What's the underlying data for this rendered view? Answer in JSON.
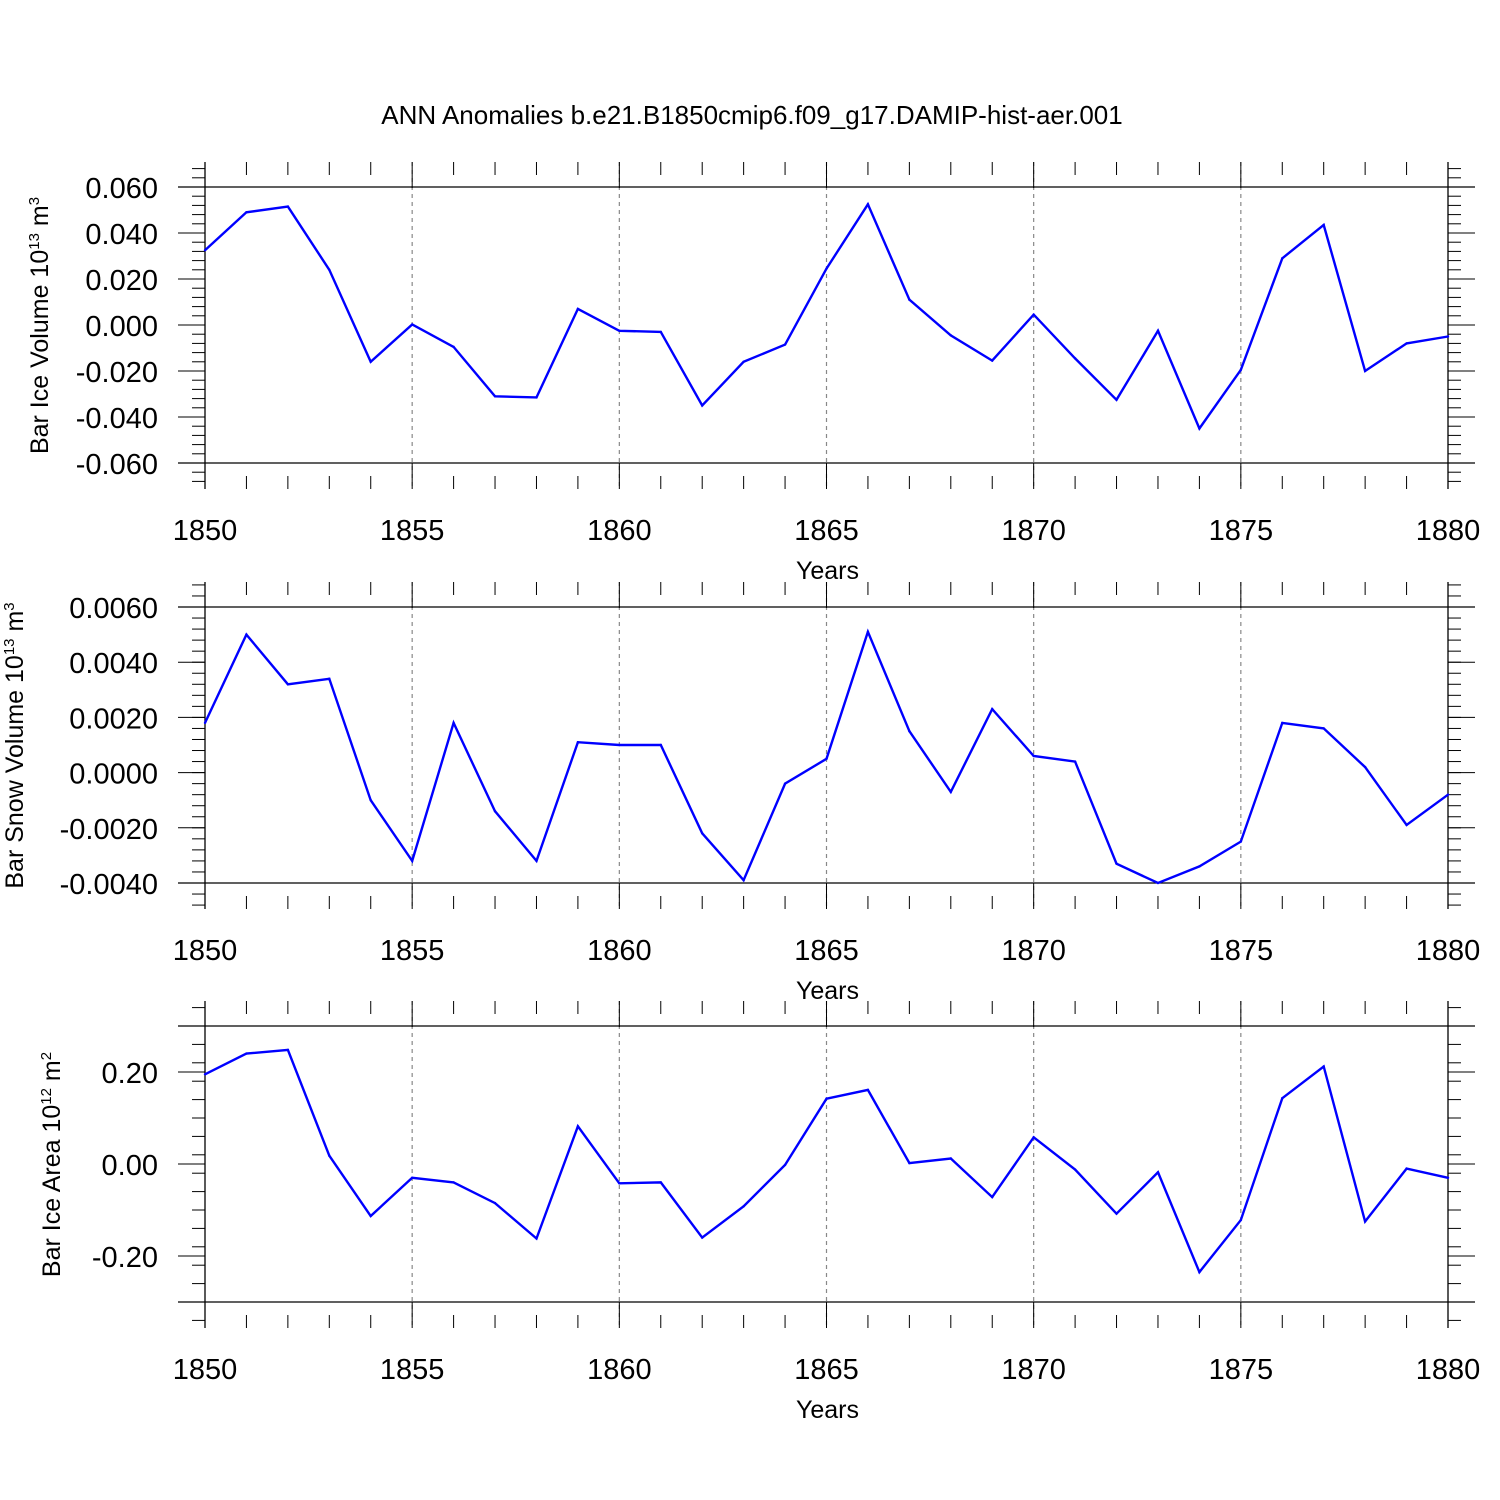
{
  "figure_title": "ANN Anomalies b.e21.B1850cmip6.f09_g17.DAMIP-hist-aer.001",
  "colors": {
    "line": "#0000ff",
    "axis": "#000000",
    "grid": "#888888"
  },
  "chart_data": [
    {
      "type": "line",
      "title": "",
      "xlabel": "Years",
      "ylabel": {
        "text": "Bar Ice Volume 10",
        "exp": "13",
        "unit": " m",
        "unit_exp": "3"
      },
      "xlim": [
        1850,
        1880
      ],
      "ylim": [
        -0.06,
        0.06
      ],
      "x_ticks": [
        1850,
        1855,
        1860,
        1865,
        1870,
        1875,
        1880
      ],
      "y_ticks": [
        -0.06,
        -0.04,
        -0.02,
        0.0,
        0.02,
        0.04,
        0.06
      ],
      "y_tick_labels": [
        "-0.060",
        "-0.040",
        "-0.020",
        "0.000",
        "0.020",
        "0.040",
        "0.060"
      ],
      "x": [
        1850,
        1851,
        1852,
        1853,
        1854,
        1855,
        1856,
        1857,
        1858,
        1859,
        1860,
        1861,
        1862,
        1863,
        1864,
        1865,
        1866,
        1867,
        1868,
        1869,
        1870,
        1871,
        1872,
        1873,
        1874,
        1875,
        1876,
        1877,
        1878,
        1879,
        1880
      ],
      "values": [
        0.0325,
        0.049,
        0.0515,
        0.024,
        -0.016,
        0.0002,
        -0.0095,
        -0.031,
        -0.0315,
        0.007,
        -0.0025,
        -0.003,
        -0.035,
        -0.016,
        -0.0085,
        0.0245,
        0.0525,
        0.011,
        -0.0045,
        -0.0155,
        0.0045,
        -0.0145,
        -0.0325,
        -0.0025,
        -0.045,
        -0.0195,
        0.029,
        0.0435,
        -0.02,
        -0.008,
        -0.005
      ]
    },
    {
      "type": "line",
      "title": "",
      "xlabel": "Years",
      "ylabel": {
        "text": "Bar Snow Volume 10",
        "exp": "13",
        "unit": " m",
        "unit_exp": "3"
      },
      "xlim": [
        1850,
        1880
      ],
      "ylim": [
        -0.004,
        0.006
      ],
      "x_ticks": [
        1850,
        1855,
        1860,
        1865,
        1870,
        1875,
        1880
      ],
      "y_ticks": [
        -0.004,
        -0.002,
        0.0,
        0.002,
        0.004,
        0.006
      ],
      "y_tick_labels": [
        "-0.0040",
        "-0.0020",
        "0.0000",
        "0.0020",
        "0.0040",
        "0.0060"
      ],
      "x": [
        1850,
        1851,
        1852,
        1853,
        1854,
        1855,
        1856,
        1857,
        1858,
        1859,
        1860,
        1861,
        1862,
        1863,
        1864,
        1865,
        1866,
        1867,
        1868,
        1869,
        1870,
        1871,
        1872,
        1873,
        1874,
        1875,
        1876,
        1877,
        1878,
        1879,
        1880
      ],
      "values": [
        0.0018,
        0.005,
        0.0032,
        0.0034,
        -0.001,
        -0.0032,
        0.0018,
        -0.0014,
        -0.0032,
        0.0011,
        0.001,
        0.001,
        -0.0022,
        -0.0039,
        -0.0004,
        0.0005,
        0.0051,
        0.0015,
        -0.0007,
        0.0023,
        0.0006,
        0.0004,
        -0.0033,
        -0.004,
        -0.0034,
        -0.0025,
        0.0018,
        0.0016,
        0.0002,
        -0.0019,
        -0.0008
      ]
    },
    {
      "type": "line",
      "title": "",
      "xlabel": "Years",
      "ylabel": {
        "text": "Bar Ice Area 10",
        "exp": "12",
        "unit": " m",
        "unit_exp": "2"
      },
      "xlim": [
        1850,
        1880
      ],
      "ylim": [
        -0.3,
        0.3
      ],
      "x_ticks": [
        1850,
        1855,
        1860,
        1865,
        1870,
        1875,
        1880
      ],
      "y_ticks": [
        -0.2,
        0.0,
        0.2
      ],
      "y_tick_labels": [
        "-0.20",
        "0.00",
        "0.20"
      ],
      "x": [
        1850,
        1851,
        1852,
        1853,
        1854,
        1855,
        1856,
        1857,
        1858,
        1859,
        1860,
        1861,
        1862,
        1863,
        1864,
        1865,
        1866,
        1867,
        1868,
        1869,
        1870,
        1871,
        1872,
        1873,
        1874,
        1875,
        1876,
        1877,
        1878,
        1879,
        1880
      ],
      "values": [
        0.195,
        0.24,
        0.248,
        0.018,
        -0.113,
        -0.03,
        -0.04,
        -0.085,
        -0.162,
        0.082,
        -0.042,
        -0.04,
        -0.16,
        -0.092,
        -0.002,
        0.142,
        0.161,
        0.002,
        0.012,
        -0.072,
        0.058,
        -0.012,
        -0.108,
        -0.018,
        -0.235,
        -0.122,
        0.143,
        0.212,
        -0.125,
        -0.01,
        -0.03
      ]
    }
  ]
}
